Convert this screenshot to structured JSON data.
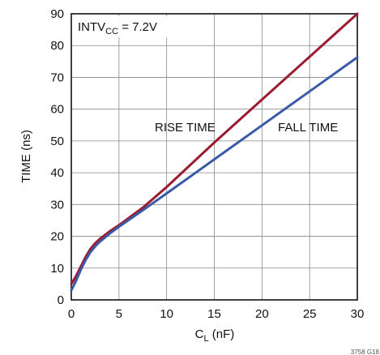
{
  "chart_data": {
    "type": "line",
    "xlim": [
      0,
      30
    ],
    "ylim": [
      0,
      90
    ],
    "x_ticks": [
      0,
      5,
      10,
      15,
      20,
      25,
      30
    ],
    "y_ticks": [
      0,
      10,
      20,
      30,
      40,
      50,
      60,
      70,
      80,
      90
    ],
    "grid": true,
    "xlabel_main": "C",
    "xlabel_sub": "L",
    "xlabel_tail": " (nF)",
    "ylabel": "TIME (ns)",
    "annotation_main": "INTV",
    "annotation_sub": "CC",
    "annotation_tail": " = 7.2V",
    "figure_id": "3758 G18",
    "series": [
      {
        "name": "RISE TIME",
        "color": "#9b1b30",
        "x": [
          0,
          0.5,
          1,
          1.5,
          2,
          2.5,
          3,
          4,
          5,
          7.5,
          10,
          15,
          20,
          25,
          30
        ],
        "y": [
          5,
          7.5,
          10.5,
          13.5,
          16,
          17.8,
          19.2,
          21.5,
          23.5,
          29,
          35.5,
          49.5,
          63,
          76.5,
          90
        ]
      },
      {
        "name": "FALL TIME",
        "color": "#3a5ba8",
        "x": [
          0,
          0.5,
          1,
          1.5,
          2,
          2.5,
          3,
          4,
          5,
          7.5,
          10,
          15,
          20,
          25,
          30
        ],
        "y": [
          3,
          6,
          9.5,
          12.5,
          15,
          16.8,
          18.3,
          20.8,
          23,
          28.2,
          33.5,
          44.2,
          54.9,
          65.6,
          76.3
        ]
      }
    ]
  }
}
